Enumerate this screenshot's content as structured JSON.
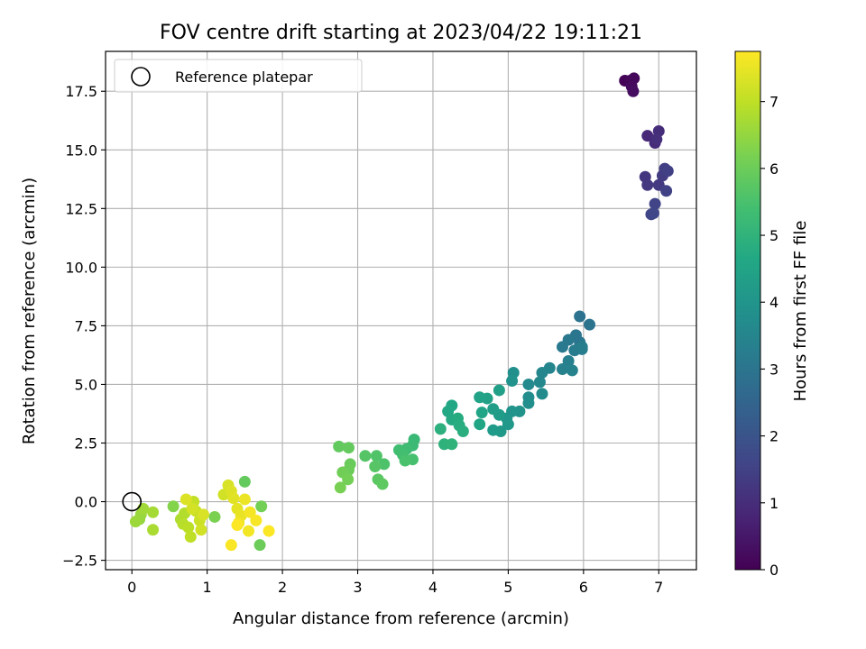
{
  "chart_data": {
    "type": "scatter",
    "title": "FOV centre drift starting at 2023/04/22 19:11:21",
    "xlabel": "Angular distance from reference (arcmin)",
    "ylabel": "Rotation from reference (arcmin)",
    "xlim": [
      -0.35,
      7.5
    ],
    "ylim": [
      -2.9,
      19.2
    ],
    "xticks": [
      0,
      1,
      2,
      3,
      4,
      5,
      6,
      7
    ],
    "xtick_labels": [
      "0",
      "1",
      "2",
      "3",
      "4",
      "5",
      "6",
      "7"
    ],
    "yticks": [
      -2.5,
      0.0,
      2.5,
      5.0,
      7.5,
      10.0,
      12.5,
      15.0,
      17.5
    ],
    "ytick_labels": [
      "−2.5",
      "0.0",
      "2.5",
      "5.0",
      "7.5",
      "10.0",
      "12.5",
      "15.0",
      "17.5"
    ],
    "grid": true,
    "colormap": "viridis",
    "colorbar": {
      "label": "Hours from first FF file",
      "range": [
        0,
        7.75
      ],
      "ticks": [
        0,
        1,
        2,
        3,
        4,
        5,
        6,
        7
      ],
      "tick_labels": [
        "0",
        "1",
        "2",
        "3",
        "4",
        "5",
        "6",
        "7"
      ]
    },
    "legend": {
      "entries": [
        "Reference platepar"
      ],
      "position": "upper-left"
    },
    "reference_point": {
      "x": 0,
      "y": 0
    },
    "points": [
      {
        "x": 6.55,
        "y": 17.95,
        "t": 0.05
      },
      {
        "x": 6.62,
        "y": 17.95,
        "t": 0.1
      },
      {
        "x": 6.67,
        "y": 18.05,
        "t": 0.15
      },
      {
        "x": 6.64,
        "y": 17.7,
        "t": 0.2
      },
      {
        "x": 6.66,
        "y": 17.5,
        "t": 0.25
      },
      {
        "x": 6.85,
        "y": 15.6,
        "t": 0.9
      },
      {
        "x": 6.95,
        "y": 15.3,
        "t": 0.95
      },
      {
        "x": 7.0,
        "y": 15.8,
        "t": 1.0
      },
      {
        "x": 6.97,
        "y": 15.45,
        "t": 1.05
      },
      {
        "x": 6.82,
        "y": 13.85,
        "t": 1.2
      },
      {
        "x": 6.85,
        "y": 13.5,
        "t": 1.25
      },
      {
        "x": 7.0,
        "y": 13.5,
        "t": 1.3
      },
      {
        "x": 7.05,
        "y": 13.9,
        "t": 1.35
      },
      {
        "x": 7.08,
        "y": 14.2,
        "t": 1.4
      },
      {
        "x": 7.12,
        "y": 14.1,
        "t": 1.45
      },
      {
        "x": 7.1,
        "y": 13.25,
        "t": 1.5
      },
      {
        "x": 6.95,
        "y": 12.7,
        "t": 1.55
      },
      {
        "x": 6.9,
        "y": 12.25,
        "t": 1.6
      },
      {
        "x": 6.93,
        "y": 12.3,
        "t": 1.65
      },
      {
        "x": 5.95,
        "y": 7.9,
        "t": 2.9
      },
      {
        "x": 6.08,
        "y": 7.55,
        "t": 2.95
      },
      {
        "x": 5.9,
        "y": 7.1,
        "t": 3.0
      },
      {
        "x": 5.95,
        "y": 6.8,
        "t": 3.05
      },
      {
        "x": 5.8,
        "y": 6.9,
        "t": 3.1
      },
      {
        "x": 5.72,
        "y": 6.6,
        "t": 3.15
      },
      {
        "x": 5.88,
        "y": 6.45,
        "t": 3.2
      },
      {
        "x": 5.98,
        "y": 6.5,
        "t": 3.25
      },
      {
        "x": 5.98,
        "y": 6.6,
        "t": 3.3
      },
      {
        "x": 5.8,
        "y": 6.0,
        "t": 3.35
      },
      {
        "x": 5.72,
        "y": 5.65,
        "t": 3.4
      },
      {
        "x": 5.85,
        "y": 5.6,
        "t": 3.45
      },
      {
        "x": 5.55,
        "y": 5.7,
        "t": 3.5
      },
      {
        "x": 5.45,
        "y": 5.5,
        "t": 3.55
      },
      {
        "x": 5.42,
        "y": 5.1,
        "t": 3.6
      },
      {
        "x": 5.27,
        "y": 5.0,
        "t": 3.65
      },
      {
        "x": 5.45,
        "y": 4.6,
        "t": 3.7
      },
      {
        "x": 5.27,
        "y": 4.45,
        "t": 3.75
      },
      {
        "x": 5.27,
        "y": 4.2,
        "t": 3.8
      },
      {
        "x": 5.07,
        "y": 5.5,
        "t": 3.85
      },
      {
        "x": 5.05,
        "y": 5.15,
        "t": 3.9
      },
      {
        "x": 5.15,
        "y": 3.85,
        "t": 3.95
      },
      {
        "x": 5.05,
        "y": 3.85,
        "t": 4.0
      },
      {
        "x": 4.98,
        "y": 3.55,
        "t": 4.05
      },
      {
        "x": 5.0,
        "y": 3.3,
        "t": 4.1
      },
      {
        "x": 4.9,
        "y": 3.0,
        "t": 4.15
      },
      {
        "x": 4.8,
        "y": 3.05,
        "t": 4.2
      },
      {
        "x": 4.88,
        "y": 3.7,
        "t": 4.25
      },
      {
        "x": 4.8,
        "y": 3.95,
        "t": 4.3
      },
      {
        "x": 4.88,
        "y": 4.75,
        "t": 4.35
      },
      {
        "x": 4.72,
        "y": 4.4,
        "t": 4.4
      },
      {
        "x": 4.62,
        "y": 4.45,
        "t": 4.45
      },
      {
        "x": 4.65,
        "y": 3.8,
        "t": 4.5
      },
      {
        "x": 4.62,
        "y": 3.3,
        "t": 4.55
      },
      {
        "x": 4.25,
        "y": 4.1,
        "t": 4.6
      },
      {
        "x": 4.2,
        "y": 3.85,
        "t": 4.65
      },
      {
        "x": 4.25,
        "y": 3.5,
        "t": 4.7
      },
      {
        "x": 4.33,
        "y": 3.55,
        "t": 4.75
      },
      {
        "x": 4.35,
        "y": 3.25,
        "t": 4.8
      },
      {
        "x": 4.4,
        "y": 3.0,
        "t": 4.85
      },
      {
        "x": 4.1,
        "y": 3.1,
        "t": 4.9
      },
      {
        "x": 4.15,
        "y": 2.45,
        "t": 4.95
      },
      {
        "x": 4.25,
        "y": 2.45,
        "t": 5.0
      },
      {
        "x": 3.75,
        "y": 2.65,
        "t": 5.2
      },
      {
        "x": 3.73,
        "y": 2.4,
        "t": 5.25
      },
      {
        "x": 3.65,
        "y": 2.25,
        "t": 5.3
      },
      {
        "x": 3.55,
        "y": 2.2,
        "t": 5.35
      },
      {
        "x": 3.6,
        "y": 2.0,
        "t": 5.4
      },
      {
        "x": 3.73,
        "y": 1.8,
        "t": 5.45
      },
      {
        "x": 3.63,
        "y": 1.75,
        "t": 5.5
      },
      {
        "x": 3.35,
        "y": 1.6,
        "t": 5.55
      },
      {
        "x": 3.25,
        "y": 1.95,
        "t": 5.6
      },
      {
        "x": 3.1,
        "y": 1.95,
        "t": 5.65
      },
      {
        "x": 3.23,
        "y": 1.5,
        "t": 5.7
      },
      {
        "x": 3.27,
        "y": 0.95,
        "t": 5.75
      },
      {
        "x": 3.33,
        "y": 0.75,
        "t": 5.8
      },
      {
        "x": 2.75,
        "y": 2.35,
        "t": 5.85
      },
      {
        "x": 2.88,
        "y": 2.3,
        "t": 5.9
      },
      {
        "x": 2.9,
        "y": 1.6,
        "t": 5.95
      },
      {
        "x": 2.88,
        "y": 1.35,
        "t": 6.0
      },
      {
        "x": 2.8,
        "y": 1.25,
        "t": 6.05
      },
      {
        "x": 2.87,
        "y": 0.95,
        "t": 6.1
      },
      {
        "x": 2.77,
        "y": 0.6,
        "t": 6.15
      },
      {
        "x": 1.5,
        "y": 0.85,
        "t": 5.9
      },
      {
        "x": 1.7,
        "y": -1.85,
        "t": 6.0
      },
      {
        "x": 1.72,
        "y": -0.2,
        "t": 6.1
      },
      {
        "x": 1.1,
        "y": -0.65,
        "t": 6.2
      },
      {
        "x": 0.55,
        "y": -0.2,
        "t": 6.3
      },
      {
        "x": 0.1,
        "y": -0.75,
        "t": 6.5
      },
      {
        "x": 0.12,
        "y": -0.55,
        "t": 6.55
      },
      {
        "x": 0.05,
        "y": -0.85,
        "t": 6.6
      },
      {
        "x": 0.15,
        "y": -0.3,
        "t": 6.65
      },
      {
        "x": 0.28,
        "y": -0.45,
        "t": 6.7
      },
      {
        "x": 0.28,
        "y": -1.2,
        "t": 6.75
      },
      {
        "x": 0.65,
        "y": -0.75,
        "t": 6.8
      },
      {
        "x": 0.7,
        "y": -0.5,
        "t": 6.85
      },
      {
        "x": 0.68,
        "y": -0.95,
        "t": 6.9
      },
      {
        "x": 0.75,
        "y": -1.1,
        "t": 6.95
      },
      {
        "x": 0.78,
        "y": -1.5,
        "t": 7.0
      },
      {
        "x": 0.82,
        "y": 0.0,
        "t": 7.05
      },
      {
        "x": 0.85,
        "y": -0.4,
        "t": 7.1
      },
      {
        "x": 0.9,
        "y": -0.8,
        "t": 7.15
      },
      {
        "x": 0.92,
        "y": -1.2,
        "t": 7.2
      },
      {
        "x": 0.8,
        "y": -0.3,
        "t": 7.25
      },
      {
        "x": 0.95,
        "y": -0.55,
        "t": 7.3
      },
      {
        "x": 0.72,
        "y": 0.1,
        "t": 7.35
      },
      {
        "x": 1.22,
        "y": 0.3,
        "t": 7.2
      },
      {
        "x": 1.28,
        "y": 0.7,
        "t": 7.3
      },
      {
        "x": 1.32,
        "y": 0.45,
        "t": 7.35
      },
      {
        "x": 1.35,
        "y": 0.15,
        "t": 7.4
      },
      {
        "x": 1.4,
        "y": -0.3,
        "t": 7.45
      },
      {
        "x": 1.45,
        "y": -0.6,
        "t": 7.5
      },
      {
        "x": 1.5,
        "y": 0.1,
        "t": 7.55
      },
      {
        "x": 1.42,
        "y": -0.9,
        "t": 7.6
      },
      {
        "x": 1.55,
        "y": -1.25,
        "t": 7.62
      },
      {
        "x": 1.57,
        "y": -0.45,
        "t": 7.65
      },
      {
        "x": 1.65,
        "y": -0.8,
        "t": 7.68
      },
      {
        "x": 1.32,
        "y": -1.85,
        "t": 7.7
      },
      {
        "x": 1.82,
        "y": -1.25,
        "t": 7.72
      },
      {
        "x": 1.4,
        "y": -1.0,
        "t": 7.72
      }
    ]
  }
}
